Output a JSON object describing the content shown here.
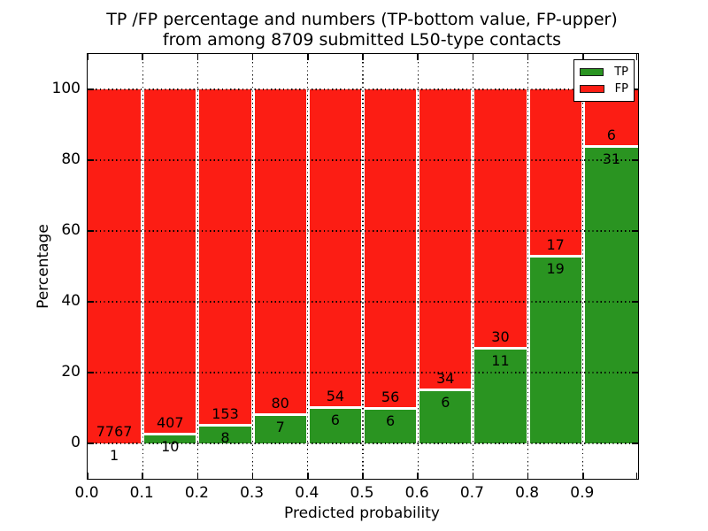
{
  "title": {
    "line1": "TP /FP percentage and numbers (TP-bottom value, FP-upper)",
    "line2": "from among 8709 submitted L50-type contacts"
  },
  "axes": {
    "xlabel": "Predicted probability",
    "ylabel": "Percentage",
    "x_tick_labels": [
      "0.0",
      "0.1",
      "0.2",
      "0.3",
      "0.4",
      "0.5",
      "0.6",
      "0.7",
      "0.8",
      "0.9"
    ],
    "y_tick_labels": [
      "0",
      "20",
      "40",
      "60",
      "80",
      "100"
    ],
    "y_tick_values": [
      0,
      20,
      40,
      60,
      80,
      100
    ]
  },
  "legend": {
    "items": [
      {
        "label": "TP",
        "color": "#2a9421"
      },
      {
        "label": "FP",
        "color": "#fc1d14"
      }
    ]
  },
  "chart_data": {
    "type": "bar",
    "stacked": true,
    "normalized": "each bin scaled to 100%",
    "title": "TP /FP percentage and numbers (TP-bottom value, FP-upper) from among 8709 submitted L50-type contacts",
    "xlabel": "Predicted probability",
    "ylabel": "Percentage",
    "xlim": [
      0.0,
      1.0
    ],
    "ylim": [
      -10,
      110
    ],
    "grid": "dotted black, both axes",
    "legend_position": "upper right",
    "total_submitted_contacts": 8709,
    "bin_width": 0.1,
    "categories": [
      "0.0-0.1",
      "0.1-0.2",
      "0.2-0.3",
      "0.3-0.4",
      "0.4-0.5",
      "0.5-0.6",
      "0.6-0.7",
      "0.7-0.8",
      "0.8-0.9",
      "0.9-1.0"
    ],
    "series": [
      {
        "name": "TP",
        "color": "#2a9421",
        "counts": [
          1,
          10,
          8,
          7,
          6,
          6,
          6,
          11,
          19,
          31
        ]
      },
      {
        "name": "FP",
        "color": "#fc1d14",
        "counts": [
          7767,
          407,
          153,
          80,
          54,
          56,
          34,
          30,
          17,
          6
        ]
      }
    ],
    "tp_percent_of_bin": [
      0.013,
      2.398,
      4.969,
      8.046,
      10.0,
      9.677,
      15.0,
      26.829,
      52.778,
      83.784
    ]
  }
}
